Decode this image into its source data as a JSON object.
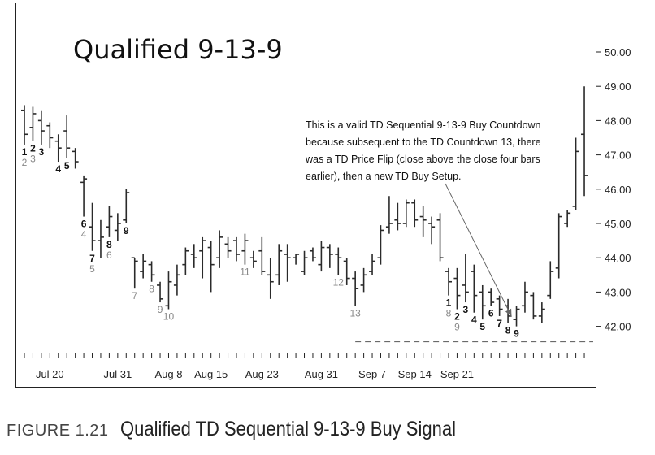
{
  "chart_data": {
    "type": "bar",
    "title": "Qualified 9-13-9",
    "ylim": [
      41.5,
      50.5
    ],
    "y_ticks": [
      "50.00",
      "49.00",
      "48.00",
      "47.00",
      "46.00",
      "45.00",
      "44.00",
      "43.00",
      "42.00"
    ],
    "x_labels": [
      {
        "i": 3,
        "label": "Jul 20"
      },
      {
        "i": 11,
        "label": "Jul 31"
      },
      {
        "i": 17,
        "label": "Aug 8"
      },
      {
        "i": 22,
        "label": "Aug 15"
      },
      {
        "i": 28,
        "label": "Aug 23"
      },
      {
        "i": 35,
        "label": "Aug 31"
      },
      {
        "i": 41,
        "label": "Sep 7"
      },
      {
        "i": 46,
        "label": "Sep 14"
      },
      {
        "i": 51,
        "label": "Sep 21"
      }
    ],
    "bars": [
      {
        "h": 48.45,
        "l": 47.3,
        "o": 48.3,
        "c": 47.6
      },
      {
        "h": 48.4,
        "l": 47.4,
        "o": 47.8,
        "c": 48.2
      },
      {
        "h": 48.3,
        "l": 47.3,
        "o": 48.0,
        "c": 47.7
      },
      {
        "h": 47.95,
        "l": 47.2,
        "o": 47.85,
        "c": 47.5
      },
      {
        "h": 47.6,
        "l": 46.8,
        "o": 47.4,
        "c": 47.2
      },
      {
        "h": 48.15,
        "l": 46.9,
        "o": 47.7,
        "c": 47.2
      },
      {
        "h": 47.2,
        "l": 46.6,
        "o": 47.1,
        "c": 46.8
      },
      {
        "h": 46.4,
        "l": 45.2,
        "o": 46.2,
        "c": 46.3
      },
      {
        "h": 45.6,
        "l": 44.2,
        "o": 44.9,
        "c": 44.5
      },
      {
        "h": 45.1,
        "l": 44.0,
        "o": 44.5,
        "c": 44.6
      },
      {
        "h": 45.5,
        "l": 44.6,
        "o": 44.9,
        "c": 45.2
      },
      {
        "h": 45.3,
        "l": 44.5,
        "o": 44.8,
        "c": 45.0
      },
      {
        "h": 46.0,
        "l": 45.0,
        "o": 45.1,
        "c": 45.9
      },
      {
        "h": 44.0,
        "l": 43.1,
        "o": 44.0,
        "c": 43.9
      },
      {
        "h": 44.1,
        "l": 43.4,
        "o": 43.6,
        "c": 43.9
      },
      {
        "h": 43.9,
        "l": 43.3,
        "o": 43.8,
        "c": 43.5
      },
      {
        "h": 43.3,
        "l": 42.7,
        "o": 43.2,
        "c": 42.8
      },
      {
        "h": 43.6,
        "l": 42.5,
        "o": 42.6,
        "c": 43.3
      },
      {
        "h": 43.8,
        "l": 42.9,
        "o": 43.2,
        "c": 43.5
      },
      {
        "h": 44.3,
        "l": 43.5,
        "o": 43.8,
        "c": 44.2
      },
      {
        "h": 44.4,
        "l": 43.7,
        "o": 44.1,
        "c": 44.0
      },
      {
        "h": 44.6,
        "l": 43.4,
        "o": 44.2,
        "c": 44.5
      },
      {
        "h": 44.5,
        "l": 43.0,
        "o": 44.3,
        "c": 43.8
      },
      {
        "h": 44.8,
        "l": 43.7,
        "o": 44.0,
        "c": 44.6
      },
      {
        "h": 44.6,
        "l": 44.0,
        "o": 44.4,
        "c": 44.2
      },
      {
        "h": 44.6,
        "l": 43.9,
        "o": 44.5,
        "c": 44.1
      },
      {
        "h": 44.7,
        "l": 43.8,
        "o": 44.2,
        "c": 44.5
      },
      {
        "h": 44.2,
        "l": 43.7,
        "o": 44.0,
        "c": 43.9
      },
      {
        "h": 44.6,
        "l": 43.5,
        "o": 44.2,
        "c": 43.6
      },
      {
        "h": 44.0,
        "l": 42.8,
        "o": 43.5,
        "c": 43.3
      },
      {
        "h": 44.4,
        "l": 43.2,
        "o": 43.5,
        "c": 44.2
      },
      {
        "h": 44.4,
        "l": 43.3,
        "o": 44.1,
        "c": 44.0
      },
      {
        "h": 44.1,
        "l": 43.8,
        "o": 44.0,
        "c": 44.1
      },
      {
        "h": 44.2,
        "l": 43.5,
        "o": 43.6,
        "c": 44.0
      },
      {
        "h": 44.3,
        "l": 43.9,
        "o": 44.2,
        "c": 44.0
      },
      {
        "h": 44.5,
        "l": 43.6,
        "o": 43.8,
        "c": 44.3
      },
      {
        "h": 44.4,
        "l": 43.7,
        "o": 44.3,
        "c": 44.1
      },
      {
        "h": 44.3,
        "l": 43.5,
        "o": 44.1,
        "c": 44.0
      },
      {
        "h": 44.0,
        "l": 43.2,
        "o": 43.9,
        "c": 43.4
      },
      {
        "h": 43.6,
        "l": 42.6,
        "o": 43.4,
        "c": 43.1
      },
      {
        "h": 43.7,
        "l": 43.0,
        "o": 43.2,
        "c": 43.5
      },
      {
        "h": 44.1,
        "l": 43.5,
        "o": 43.6,
        "c": 43.9
      },
      {
        "h": 44.95,
        "l": 43.8,
        "o": 44.0,
        "c": 44.8
      },
      {
        "h": 45.8,
        "l": 44.7,
        "o": 44.9,
        "c": 45.0
      },
      {
        "h": 45.6,
        "l": 44.8,
        "o": 45.1,
        "c": 45.0
      },
      {
        "h": 45.7,
        "l": 44.9,
        "o": 45.0,
        "c": 45.6
      },
      {
        "h": 45.7,
        "l": 44.9,
        "o": 45.6,
        "c": 45.1
      },
      {
        "h": 45.5,
        "l": 44.6,
        "o": 45.2,
        "c": 45.1
      },
      {
        "h": 45.2,
        "l": 44.4,
        "o": 45.0,
        "c": 44.9
      },
      {
        "h": 45.3,
        "l": 43.9,
        "o": 45.1,
        "c": 44.0
      },
      {
        "h": 43.7,
        "l": 42.9,
        "o": 43.6,
        "c": 43.3
      },
      {
        "h": 43.7,
        "l": 42.5,
        "o": 43.4,
        "c": 42.9
      },
      {
        "h": 44.1,
        "l": 42.7,
        "o": 43.2,
        "c": 43.0
      },
      {
        "h": 43.8,
        "l": 42.4,
        "o": 43.6,
        "c": 42.9
      },
      {
        "h": 43.2,
        "l": 42.2,
        "o": 43.0,
        "c": 42.6
      },
      {
        "h": 43.1,
        "l": 42.6,
        "o": 43.0,
        "c": 42.7
      },
      {
        "h": 42.9,
        "l": 42.3,
        "o": 42.8,
        "c": 42.5
      },
      {
        "h": 42.8,
        "l": 42.1,
        "o": 42.6,
        "c": 42.3
      },
      {
        "h": 42.6,
        "l": 42.0,
        "o": 42.2,
        "c": 42.5
      },
      {
        "h": 43.3,
        "l": 42.4,
        "o": 42.6,
        "c": 43.0
      },
      {
        "h": 43.0,
        "l": 42.2,
        "o": 42.9,
        "c": 42.3
      },
      {
        "h": 42.7,
        "l": 42.1,
        "o": 42.3,
        "c": 42.5
      },
      {
        "h": 43.9,
        "l": 42.8,
        "o": 42.9,
        "c": 43.6
      },
      {
        "h": 45.3,
        "l": 43.4,
        "o": 43.7,
        "c": 45.2
      },
      {
        "h": 45.4,
        "l": 44.9,
        "o": 45.0,
        "c": 45.3
      },
      {
        "h": 47.5,
        "l": 45.4,
        "o": 45.5,
        "c": 47.1
      },
      {
        "h": 49.0,
        "l": 45.8,
        "o": 47.6,
        "c": 46.4
      }
    ],
    "setup_labels": [
      {
        "i": 0,
        "text": "1",
        "pos": "below",
        "color": "dark"
      },
      {
        "i": 0,
        "text": "2",
        "pos": "below2",
        "color": "gray"
      },
      {
        "i": 1,
        "text": "2",
        "pos": "below",
        "color": "dark"
      },
      {
        "i": 1,
        "text": "3",
        "pos": "below2",
        "color": "gray"
      },
      {
        "i": 2,
        "text": "3",
        "pos": "below",
        "color": "dark"
      },
      {
        "i": 4,
        "text": "4",
        "pos": "below",
        "color": "dark"
      },
      {
        "i": 5,
        "text": "5",
        "pos": "below",
        "color": "dark"
      },
      {
        "i": 7,
        "text": "6",
        "pos": "below",
        "color": "dark"
      },
      {
        "i": 7,
        "text": "4",
        "pos": "below2",
        "color": "gray"
      },
      {
        "i": 8,
        "text": "7",
        "pos": "below",
        "color": "dark"
      },
      {
        "i": 8,
        "text": "5",
        "pos": "below2",
        "color": "gray"
      },
      {
        "i": 10,
        "text": "8",
        "pos": "below",
        "color": "dark"
      },
      {
        "i": 10,
        "text": "6",
        "pos": "below2",
        "color": "gray"
      },
      {
        "i": 12,
        "text": "9",
        "pos": "below",
        "color": "dark"
      },
      {
        "i": 13,
        "text": "7",
        "pos": "below",
        "color": "gray"
      },
      {
        "i": 15,
        "text": "8",
        "pos": "below",
        "color": "gray"
      },
      {
        "i": 16,
        "text": "9",
        "pos": "below",
        "color": "gray"
      },
      {
        "i": 17,
        "text": "10",
        "pos": "below",
        "color": "gray"
      },
      {
        "i": 26,
        "text": "11",
        "pos": "below",
        "color": "gray"
      },
      {
        "i": 37,
        "text": "12",
        "pos": "below",
        "color": "gray"
      },
      {
        "i": 39,
        "text": "13",
        "pos": "below",
        "color": "gray"
      },
      {
        "i": 50,
        "text": "1",
        "pos": "below",
        "color": "dark"
      },
      {
        "i": 50,
        "text": "8",
        "pos": "below2",
        "color": "gray"
      },
      {
        "i": 51,
        "text": "2",
        "pos": "below",
        "color": "dark"
      },
      {
        "i": 51,
        "text": "9",
        "pos": "below2",
        "color": "gray"
      },
      {
        "i": 52,
        "text": "3",
        "pos": "below",
        "color": "dark"
      },
      {
        "i": 53,
        "text": "4",
        "pos": "below",
        "color": "dark"
      },
      {
        "i": 54,
        "text": "5",
        "pos": "below",
        "color": "dark"
      },
      {
        "i": 55,
        "text": "6",
        "pos": "below",
        "color": "dark"
      },
      {
        "i": 56,
        "text": "7",
        "pos": "below",
        "color": "dark"
      },
      {
        "i": 57,
        "text": "8",
        "pos": "below",
        "color": "dark"
      },
      {
        "i": 58,
        "text": "9",
        "pos": "below",
        "color": "dark"
      }
    ],
    "support_level": 41.55,
    "annotation": {
      "text_lines": [
        "This is a valid TD Sequential 9-13-9 Buy Countdown",
        "because subsequent to the TD Countdown 13, there",
        "was a TD Price Flip (close above the close four bars",
        "earlier), then a new TD Buy Setup."
      ],
      "arrow_target_bar": 58
    },
    "colors": {
      "bar": "#2a2a2a",
      "dark_label": "#111111",
      "gray_label": "#888888",
      "axis": "#222222"
    }
  },
  "caption": {
    "figure": "FIGURE 1.21",
    "text": "Qualified TD Sequential 9-13-9 Buy Signal"
  }
}
